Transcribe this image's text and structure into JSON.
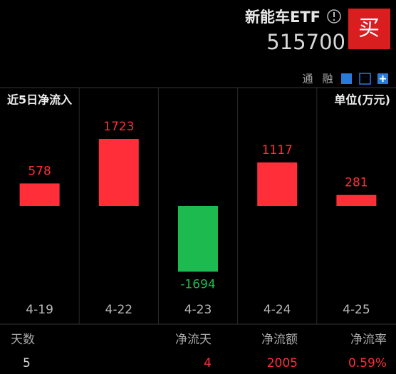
{
  "header": {
    "name": "新能车ETF",
    "code": "515700",
    "buy": "买",
    "tools": [
      "通",
      "融"
    ]
  },
  "chart_data": {
    "type": "bar",
    "title": "近5日净流入",
    "unit": "单位(万元)",
    "categories": [
      "4-19",
      "4-22",
      "4-23",
      "4-24",
      "4-25"
    ],
    "values": [
      578,
      1723,
      -1694,
      1117,
      281
    ],
    "positive_color": "#ff2e38",
    "negative_color": "#1cba4f"
  },
  "summary": {
    "headers": [
      "天数",
      "净流天",
      "净流额",
      "净流率"
    ],
    "values": [
      "5",
      "4",
      "2005",
      "0.59%"
    ]
  }
}
